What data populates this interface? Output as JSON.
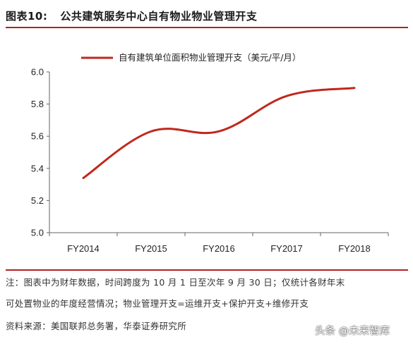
{
  "figure": {
    "number": "图表10:",
    "title": "公共建筑服务中心自有物业物业管理开支"
  },
  "chart_data": {
    "type": "line",
    "x": [
      "FY2014",
      "FY2015",
      "FY2016",
      "FY2017",
      "FY2018"
    ],
    "series": [
      {
        "name": "自有建筑单位面积物业管理开支（美元/平/月）",
        "values": [
          5.34,
          5.63,
          5.63,
          5.85,
          5.9
        ]
      }
    ],
    "yticks": [
      "5.0",
      "5.2",
      "5.4",
      "5.6",
      "5.8",
      "6.0"
    ],
    "ylim": [
      5.0,
      6.0
    ],
    "line_color": "#c0281e",
    "legend_position": "top-center",
    "grid": false
  },
  "notes": {
    "line1": "注：图表中为财年数据，时间跨度为 10 月 1 日至次年 9 月 30 日；仅统计各财年末",
    "line2": "可处置物业的年度经营情况；物业管理开支=运维开支+保护开支+维修开支",
    "source": "资料来源：美国联邦总务署，华泰证券研究所"
  },
  "watermark": "头条 @未来智库"
}
